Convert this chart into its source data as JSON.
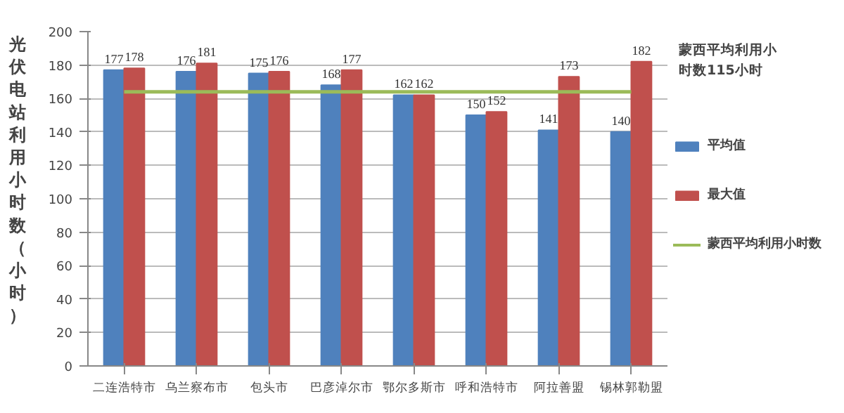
{
  "chart_data": {
    "type": "bar",
    "ylabel": "光伏电站利用小时数（小时）",
    "categories": [
      "二连浩特市",
      "乌兰察布市",
      "包头市",
      "巴彦淖尔市",
      "鄂尔多斯市",
      "呼和浩特市",
      "阿拉善盟",
      "锡林郭勒盟"
    ],
    "series": [
      {
        "name": "平均值",
        "color": "#4f81bd",
        "values": [
          177,
          176,
          175,
          168,
          162,
          150,
          141,
          140
        ],
        "value_labels": [
          "177",
          "176",
          "175",
          "168",
          "162",
          "150",
          "141",
          "140"
        ]
      },
      {
        "name": "最大值",
        "color": "#c0504d",
        "values": [
          178,
          181,
          176,
          177,
          162,
          152,
          173,
          182
        ],
        "value_labels": [
          "178",
          "181",
          "176",
          "177",
          "162",
          "152",
          "173",
          "182"
        ]
      },
      {
        "name": "蒙西平均利用小时数",
        "type": "line",
        "color": "#9bbb59",
        "values": [
          164,
          164,
          164,
          164,
          164,
          164,
          164,
          164
        ]
      }
    ],
    "ylim": [
      0,
      200
    ],
    "yticks": [
      0,
      20,
      40,
      60,
      80,
      100,
      120,
      140,
      160,
      180,
      200
    ],
    "grid": "y",
    "legend": "right",
    "annotations": [
      "蒙西平均利用小时数115小时"
    ]
  }
}
